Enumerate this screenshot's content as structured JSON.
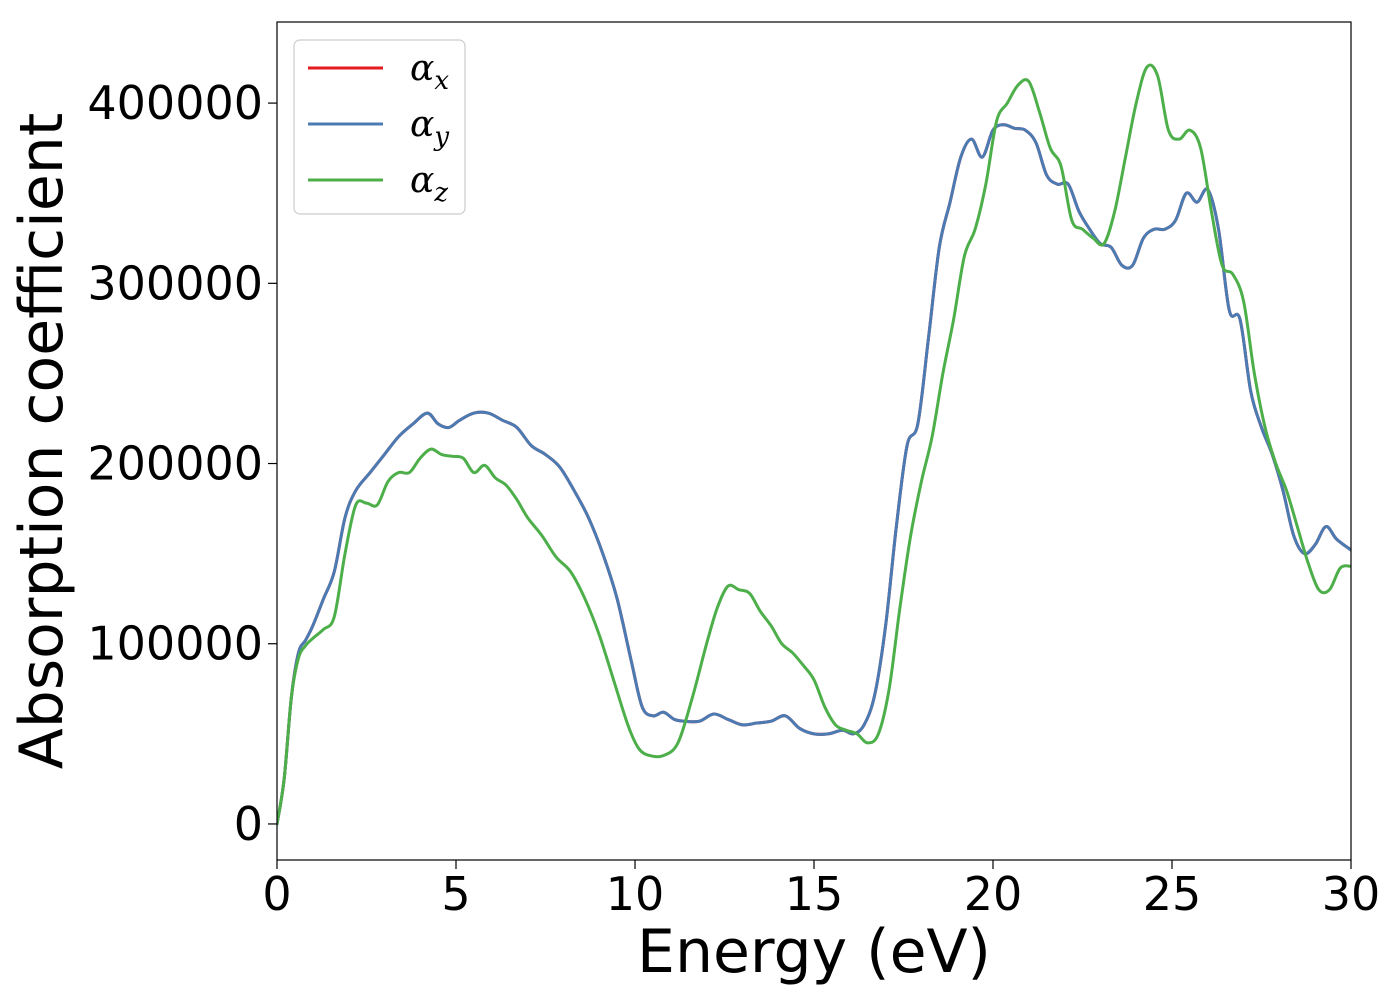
{
  "chart_data": {
    "type": "line",
    "xlabel": "Energy (eV)",
    "ylabel": "Absorption coefficient",
    "xlim": [
      0,
      30
    ],
    "ylim": [
      -20000,
      445000
    ],
    "xticks": [
      0,
      5,
      10,
      15,
      20,
      25,
      30
    ],
    "xtick_labels": [
      "0",
      "5",
      "10",
      "15",
      "20",
      "25",
      "30"
    ],
    "yticks": [
      0,
      100000,
      200000,
      300000,
      400000
    ],
    "ytick_labels": [
      "0",
      "100000",
      "200000",
      "300000",
      "400000"
    ],
    "grid": false,
    "legend_position": "top-left",
    "series": [
      {
        "name": "α_x",
        "legend_base": "α",
        "legend_sub": "x",
        "color": "#e41a1c",
        "x": [
          0,
          0.2,
          0.4,
          0.6,
          0.8,
          1.0,
          1.3,
          1.6,
          1.9,
          2.2,
          2.6,
          3.0,
          3.4,
          3.8,
          4.2,
          4.5,
          4.8,
          5.1,
          5.5,
          5.9,
          6.3,
          6.7,
          7.1,
          7.5,
          7.9,
          8.3,
          8.7,
          9.1,
          9.5,
          9.9,
          10.2,
          10.5,
          10.8,
          11.1,
          11.4,
          11.8,
          12.2,
          12.6,
          13.0,
          13.4,
          13.8,
          14.2,
          14.6,
          15.0,
          15.4,
          15.8,
          16.1,
          16.4,
          16.7,
          17.0,
          17.3,
          17.6,
          17.9,
          18.2,
          18.5,
          18.8,
          19.1,
          19.4,
          19.7,
          20.0,
          20.3,
          20.6,
          20.9,
          21.2,
          21.5,
          21.8,
          22.1,
          22.4,
          22.7,
          23.0,
          23.3,
          23.6,
          23.9,
          24.2,
          24.5,
          24.8,
          25.1,
          25.4,
          25.7,
          26.0,
          26.3,
          26.6,
          26.9,
          27.2,
          27.5,
          27.8,
          28.1,
          28.4,
          28.7,
          29.0,
          29.3,
          29.6,
          30.0
        ],
        "y": [
          0,
          25000,
          70000,
          95000,
          102000,
          110000,
          125000,
          140000,
          170000,
          185000,
          195000,
          205000,
          215000,
          222000,
          228000,
          222000,
          220000,
          224000,
          228000,
          228000,
          224000,
          220000,
          210000,
          205000,
          198000,
          185000,
          170000,
          150000,
          125000,
          90000,
          65000,
          60000,
          62000,
          58000,
          57000,
          57000,
          61000,
          58000,
          55000,
          56000,
          57000,
          60000,
          53000,
          50000,
          50000,
          52000,
          50000,
          55000,
          72000,
          110000,
          165000,
          210000,
          222000,
          270000,
          320000,
          345000,
          370000,
          380000,
          370000,
          385000,
          388000,
          386000,
          385000,
          378000,
          360000,
          355000,
          355000,
          340000,
          330000,
          322000,
          320000,
          310000,
          310000,
          325000,
          330000,
          330000,
          335000,
          350000,
          345000,
          352000,
          330000,
          285000,
          280000,
          240000,
          220000,
          205000,
          185000,
          160000,
          150000,
          155000,
          165000,
          158000,
          152000
        ]
      },
      {
        "name": "α_y",
        "legend_base": "α",
        "legend_sub": "y",
        "color": "#4a7bb3",
        "x": [
          0,
          0.2,
          0.4,
          0.6,
          0.8,
          1.0,
          1.3,
          1.6,
          1.9,
          2.2,
          2.6,
          3.0,
          3.4,
          3.8,
          4.2,
          4.5,
          4.8,
          5.1,
          5.5,
          5.9,
          6.3,
          6.7,
          7.1,
          7.5,
          7.9,
          8.3,
          8.7,
          9.1,
          9.5,
          9.9,
          10.2,
          10.5,
          10.8,
          11.1,
          11.4,
          11.8,
          12.2,
          12.6,
          13.0,
          13.4,
          13.8,
          14.2,
          14.6,
          15.0,
          15.4,
          15.8,
          16.1,
          16.4,
          16.7,
          17.0,
          17.3,
          17.6,
          17.9,
          18.2,
          18.5,
          18.8,
          19.1,
          19.4,
          19.7,
          20.0,
          20.3,
          20.6,
          20.9,
          21.2,
          21.5,
          21.8,
          22.1,
          22.4,
          22.7,
          23.0,
          23.3,
          23.6,
          23.9,
          24.2,
          24.5,
          24.8,
          25.1,
          25.4,
          25.7,
          26.0,
          26.3,
          26.6,
          26.9,
          27.2,
          27.5,
          27.8,
          28.1,
          28.4,
          28.7,
          29.0,
          29.3,
          29.6,
          30.0
        ],
        "y": [
          0,
          25000,
          70000,
          95000,
          102000,
          110000,
          125000,
          140000,
          170000,
          185000,
          195000,
          205000,
          215000,
          222000,
          228000,
          222000,
          220000,
          224000,
          228000,
          228000,
          224000,
          220000,
          210000,
          205000,
          198000,
          185000,
          170000,
          150000,
          125000,
          90000,
          65000,
          60000,
          62000,
          58000,
          57000,
          57000,
          61000,
          58000,
          55000,
          56000,
          57000,
          60000,
          53000,
          50000,
          50000,
          52000,
          50000,
          55000,
          72000,
          110000,
          165000,
          210000,
          222000,
          270000,
          320000,
          345000,
          370000,
          380000,
          370000,
          385000,
          388000,
          386000,
          385000,
          378000,
          360000,
          355000,
          355000,
          340000,
          330000,
          322000,
          320000,
          310000,
          310000,
          325000,
          330000,
          330000,
          335000,
          350000,
          345000,
          352000,
          330000,
          285000,
          280000,
          240000,
          220000,
          205000,
          185000,
          160000,
          150000,
          155000,
          165000,
          158000,
          152000
        ]
      },
      {
        "name": "α_z",
        "legend_base": "α",
        "legend_sub": "z",
        "color": "#4daf4a",
        "x": [
          0,
          0.2,
          0.4,
          0.6,
          0.8,
          1.0,
          1.3,
          1.6,
          1.9,
          2.2,
          2.5,
          2.8,
          3.1,
          3.4,
          3.7,
          4.0,
          4.3,
          4.6,
          4.9,
          5.2,
          5.5,
          5.8,
          6.1,
          6.4,
          6.7,
          7.0,
          7.4,
          7.8,
          8.2,
          8.6,
          9.0,
          9.4,
          9.8,
          10.1,
          10.4,
          10.8,
          11.2,
          11.6,
          12.0,
          12.3,
          12.6,
          12.9,
          13.2,
          13.5,
          13.8,
          14.1,
          14.4,
          14.7,
          15.0,
          15.3,
          15.6,
          15.9,
          16.2,
          16.5,
          16.8,
          17.1,
          17.4,
          17.7,
          18.0,
          18.3,
          18.6,
          18.9,
          19.2,
          19.5,
          19.8,
          20.1,
          20.4,
          20.7,
          21.0,
          21.3,
          21.6,
          21.9,
          22.2,
          22.5,
          22.8,
          23.1,
          23.4,
          23.7,
          24.0,
          24.3,
          24.6,
          24.9,
          25.2,
          25.5,
          25.8,
          26.1,
          26.4,
          26.7,
          27.0,
          27.3,
          27.6,
          27.9,
          28.2,
          28.5,
          28.8,
          29.1,
          29.4,
          29.7,
          30.0
        ],
        "y": [
          0,
          25000,
          70000,
          92000,
          99000,
          103000,
          108000,
          115000,
          150000,
          177000,
          178000,
          177000,
          190000,
          195000,
          195000,
          203000,
          208000,
          205000,
          204000,
          203000,
          195000,
          199000,
          192000,
          188000,
          180000,
          170000,
          160000,
          148000,
          140000,
          125000,
          105000,
          80000,
          55000,
          42000,
          38000,
          38000,
          45000,
          70000,
          100000,
          120000,
          132000,
          130000,
          128000,
          118000,
          110000,
          100000,
          95000,
          88000,
          80000,
          65000,
          55000,
          52000,
          50000,
          45000,
          50000,
          75000,
          120000,
          160000,
          190000,
          215000,
          250000,
          280000,
          315000,
          330000,
          355000,
          390000,
          400000,
          410000,
          412000,
          395000,
          375000,
          365000,
          335000,
          330000,
          325000,
          322000,
          340000,
          370000,
          400000,
          420000,
          415000,
          385000,
          380000,
          385000,
          375000,
          340000,
          310000,
          305000,
          290000,
          250000,
          220000,
          200000,
          185000,
          165000,
          145000,
          130000,
          130000,
          142000,
          143000
        ]
      }
    ]
  }
}
